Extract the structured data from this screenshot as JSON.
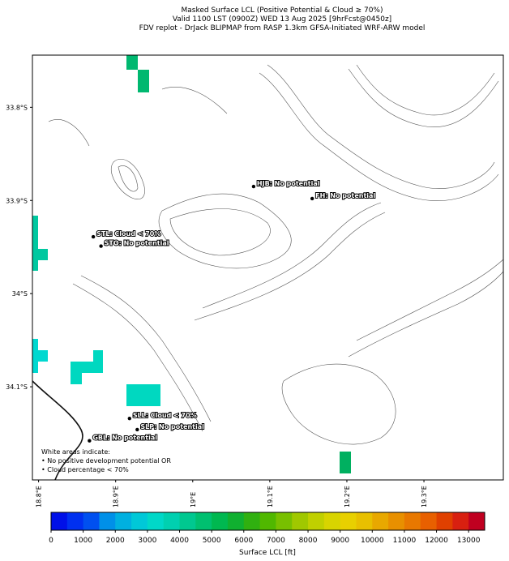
{
  "chart_data": {
    "type": "map",
    "title": [
      "Masked Surface LCL (Positive Potential & Cloud ≥ 70%)",
      "Valid 1100 LST (0900Z) WED 13 Aug 2025 [9hrFcst@0450z]",
      "FDV replot - DrJack BLIPMAP from RASP 1.3km GFSA-Initiated WRF-ARW model"
    ],
    "xlim": [
      18.792,
      19.403
    ],
    "ylim": [
      -33.744,
      -34.2
    ],
    "xticks": [
      {
        "value": 18.8,
        "label": "18.8°E"
      },
      {
        "value": 18.9,
        "label": "18.9°E"
      },
      {
        "value": 19.0,
        "label": "19°E"
      },
      {
        "value": 19.1,
        "label": "19.1°E"
      },
      {
        "value": 19.2,
        "label": "19.2°E"
      },
      {
        "value": 19.3,
        "label": "19.3°E"
      }
    ],
    "yticks": [
      {
        "value": -33.8,
        "label": "33.8°S"
      },
      {
        "value": -33.9,
        "label": "33.9°S"
      },
      {
        "value": -34.0,
        "label": "34°S"
      },
      {
        "value": -34.1,
        "label": "34.1°S"
      }
    ],
    "stations": [
      {
        "label": "HJB: No potential",
        "lon": 19.079,
        "lat": -33.885
      },
      {
        "label": "FH: No potential",
        "lon": 19.155,
        "lat": -33.898
      },
      {
        "label": "STL: Cloud < 70%",
        "lon": 18.871,
        "lat": -33.939
      },
      {
        "label": "STO: No potential",
        "lon": 18.881,
        "lat": -33.949
      },
      {
        "label": "SLL: Cloud < 70%",
        "lon": 18.918,
        "lat": -34.134
      },
      {
        "label": "SLP: No potential",
        "lon": 18.928,
        "lat": -34.146
      },
      {
        "label": "GBL: No potential",
        "lon": 18.866,
        "lat": -34.158
      }
    ],
    "note": [
      "White areas indicate:",
      "• No positive development potential OR",
      "• Cloud percentage < 70%"
    ],
    "colorbar": {
      "label": "Surface LCL [ft]",
      "lim": [
        0,
        13500
      ],
      "ticks": [
        0,
        1000,
        2000,
        3000,
        4000,
        5000,
        6000,
        7000,
        8000,
        9000,
        10000,
        11000,
        12000,
        13000
      ],
      "colors": [
        "#0010e8",
        "#0030f0",
        "#0050f0",
        "#0090e8",
        "#00b0e0",
        "#00c8d8",
        "#00d8c8",
        "#00d0b0",
        "#00c890",
        "#00c070",
        "#00b850",
        "#10b030",
        "#30b010",
        "#50b800",
        "#78c000",
        "#a0c800",
        "#c0d000",
        "#d8d400",
        "#e8d000",
        "#e8c000",
        "#e8a800",
        "#e89000",
        "#e87800",
        "#e86000",
        "#e04000",
        "#d82010",
        "#c00020"
      ]
    }
  }
}
